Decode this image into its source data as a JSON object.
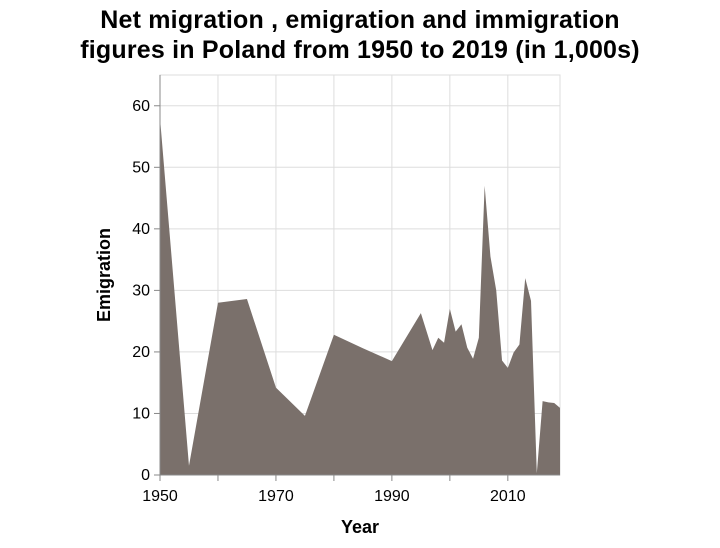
{
  "chart_data": {
    "type": "area",
    "title_lines": [
      "Net migration , emigration and immigration",
      "figures in Poland from 1950 to 2019 (in 1,000s)"
    ],
    "xlabel": "Year",
    "ylabel": "Emigration",
    "xlim": [
      1950,
      2019
    ],
    "ylim": [
      0,
      65
    ],
    "xticks": [
      1950,
      1970,
      1990,
      2010
    ],
    "xtick_labels": [
      "1950",
      "1970",
      "1990",
      "2010"
    ],
    "yticks": [
      0,
      10,
      20,
      30,
      40,
      50,
      60
    ],
    "ytick_labels": [
      "0",
      "10",
      "20",
      "30",
      "40",
      "50",
      "60"
    ],
    "x_minor_ticks": [
      1960,
      1980,
      2000
    ],
    "grid": true,
    "fill_color": "#7a706b",
    "x": [
      1950,
      1955,
      1960,
      1965,
      1970,
      1975,
      1980,
      1985,
      1990,
      1995,
      1997,
      1998,
      1999,
      2000,
      2001,
      2002,
      2003,
      2004,
      2005,
      2006,
      2007,
      2008,
      2009,
      2010,
      2011,
      2012,
      2013,
      2014,
      2015,
      2016,
      2017,
      2018,
      2019
    ],
    "y": [
      58,
      1.5,
      28,
      28.6,
      14.2,
      9.6,
      22.8,
      20.6,
      18.5,
      26.3,
      20.3,
      22.3,
      21.5,
      27,
      23.3,
      24.5,
      20.7,
      18.9,
      22.3,
      47,
      35.5,
      30,
      18.6,
      17.4,
      19.9,
      21.2,
      32,
      28.3,
      0.3,
      12,
      11.8,
      11.7,
      10.9
    ]
  }
}
